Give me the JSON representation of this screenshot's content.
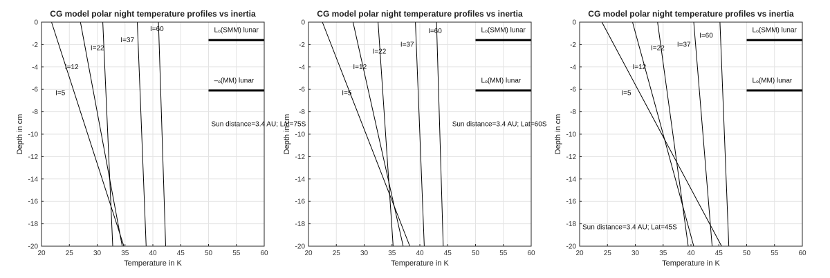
{
  "chart_data": [
    {
      "type": "line",
      "title": "CG model polar night temperature profiles vs inertia",
      "xlabel": "Temperature in K",
      "ylabel": "Depth in cm",
      "xlim": [
        20,
        60
      ],
      "ylim": [
        -20,
        0
      ],
      "xticks": [
        "20",
        "25",
        "30",
        "35",
        "40",
        "45",
        "50",
        "55",
        "60"
      ],
      "yticks": [
        "0",
        "-2",
        "-4",
        "-6",
        "-8",
        "-10",
        "-12",
        "-14",
        "-16",
        "-18",
        "-20"
      ],
      "grid": true,
      "series": [
        {
          "name": "I=5",
          "x": [
            21.8,
            34.8
          ],
          "y": [
            0,
            -20
          ]
        },
        {
          "name": "I=12",
          "x": [
            27.0,
            34.5
          ],
          "y": [
            0,
            -20
          ]
        },
        {
          "name": "I=22",
          "x": [
            31.0,
            32.8
          ],
          "y": [
            0,
            -20
          ]
        },
        {
          "name": "I=37",
          "x": [
            37.2,
            38.8
          ],
          "y": [
            0,
            -20
          ]
        },
        {
          "name": "I=60",
          "x": [
            41.0,
            42.3
          ],
          "y": [
            0,
            -20
          ]
        }
      ],
      "curve_labels": [
        {
          "text": "I=5",
          "x": 22.5,
          "y": -6.5
        },
        {
          "text": "I=12",
          "x": 24.2,
          "y": -4.2
        },
        {
          "text": "I=22",
          "x": 28.8,
          "y": -2.5
        },
        {
          "text": "I=37",
          "x": 34.2,
          "y": -1.8
        },
        {
          "text": "I=60",
          "x": 39.5,
          "y": -0.8
        }
      ],
      "reference_lines": [
        {
          "label": "Lₒ(SMM) lunar",
          "depth": -1.6,
          "x_range": [
            50,
            60
          ],
          "label_y": -0.9
        },
        {
          "label": "–ₒ(MM) lunar",
          "depth": -6.1,
          "x_range": [
            50,
            60
          ],
          "label_y": -5.4
        }
      ],
      "annotation": {
        "text": "Sun distance=3.4 AU; Lat=75S",
        "x": 50.5,
        "y": -9.3
      }
    },
    {
      "type": "line",
      "title": "CG model polar night temperature profiles vs inertia",
      "xlabel": "Temperature in K",
      "ylabel": "Depth in cm",
      "xlim": [
        20,
        60
      ],
      "ylim": [
        -20,
        0
      ],
      "xticks": [
        "20",
        "25",
        "30",
        "35",
        "40",
        "45",
        "50",
        "55",
        "60"
      ],
      "yticks": [
        "0",
        "-2",
        "-4",
        "-6",
        "-8",
        "-10",
        "-12",
        "-14",
        "-16",
        "-18",
        "-20"
      ],
      "grid": true,
      "series": [
        {
          "name": "I=5",
          "x": [
            22.5,
            38.2
          ],
          "y": [
            0,
            -20
          ]
        },
        {
          "name": "I=12",
          "x": [
            28.0,
            37.0
          ],
          "y": [
            0,
            -20
          ]
        },
        {
          "name": "I=22",
          "x": [
            32.5,
            35.2
          ],
          "y": [
            0,
            -20
          ]
        },
        {
          "name": "I=37",
          "x": [
            39.2,
            40.8
          ],
          "y": [
            0,
            -20
          ]
        },
        {
          "name": "I=60",
          "x": [
            43.0,
            44.2
          ],
          "y": [
            0,
            -20
          ]
        }
      ],
      "curve_labels": [
        {
          "text": "I=5",
          "x": 26.0,
          "y": -6.5
        },
        {
          "text": "I=12",
          "x": 28.0,
          "y": -4.2
        },
        {
          "text": "I=22",
          "x": 31.5,
          "y": -2.8
        },
        {
          "text": "I=37",
          "x": 36.5,
          "y": -2.2
        },
        {
          "text": "I=60",
          "x": 41.5,
          "y": -1.0
        }
      ],
      "reference_lines": [
        {
          "label": "Lₒ(SMM) lunar",
          "depth": -1.6,
          "x_range": [
            50,
            60
          ],
          "label_y": -0.9
        },
        {
          "label": "Lₒ(MM) lunar",
          "depth": -6.1,
          "x_range": [
            50,
            60
          ],
          "label_y": -5.4
        }
      ],
      "annotation": {
        "text": "Sun distance=3.4 AU; Lat=60S",
        "x": 45.8,
        "y": -9.3
      }
    },
    {
      "type": "line",
      "title": "CG model polar night temperature profiles vs inertia",
      "xlabel": "Temperature in K",
      "ylabel": "Depth in cm",
      "xlim": [
        20,
        60
      ],
      "ylim": [
        -20,
        0
      ],
      "xticks": [
        "20",
        "25",
        "30",
        "35",
        "40",
        "45",
        "50",
        "55",
        "60"
      ],
      "yticks": [
        "0",
        "-2",
        "-4",
        "-6",
        "-8",
        "-10",
        "-12",
        "-14",
        "-16",
        "-18",
        "-20"
      ],
      "grid": true,
      "series": [
        {
          "name": "I=5",
          "x": [
            24.0,
            45.5
          ],
          "y": [
            0,
            -20
          ]
        },
        {
          "name": "I=12",
          "x": [
            29.5,
            40.5
          ],
          "y": [
            0,
            -20
          ]
        },
        {
          "name": "I=22",
          "x": [
            34.0,
            39.5
          ],
          "y": [
            0,
            -20
          ]
        },
        {
          "name": "I=37",
          "x": [
            40.5,
            43.8
          ],
          "y": [
            0,
            -20
          ]
        },
        {
          "name": "I=60",
          "x": [
            45.2,
            46.8
          ],
          "y": [
            0,
            -20
          ]
        }
      ],
      "curve_labels": [
        {
          "text": "I=5",
          "x": 27.5,
          "y": -6.5
        },
        {
          "text": "I=12",
          "x": 29.5,
          "y": -4.2
        },
        {
          "text": "I=22",
          "x": 32.8,
          "y": -2.5
        },
        {
          "text": "I=37",
          "x": 37.5,
          "y": -2.2
        },
        {
          "text": "I=60",
          "x": 41.5,
          "y": -1.4
        }
      ],
      "reference_lines": [
        {
          "label": "Lₒ(SMM) lunar",
          "depth": -1.6,
          "x_range": [
            50,
            60
          ],
          "label_y": -0.9
        },
        {
          "label": "Lₒ(MM) lunar",
          "depth": -6.1,
          "x_range": [
            50,
            60
          ],
          "label_y": -5.4
        }
      ],
      "annotation": {
        "text": "Sun distance=3.4 AU; Lat=45S",
        "x": 20.5,
        "y": -18.5
      }
    }
  ]
}
